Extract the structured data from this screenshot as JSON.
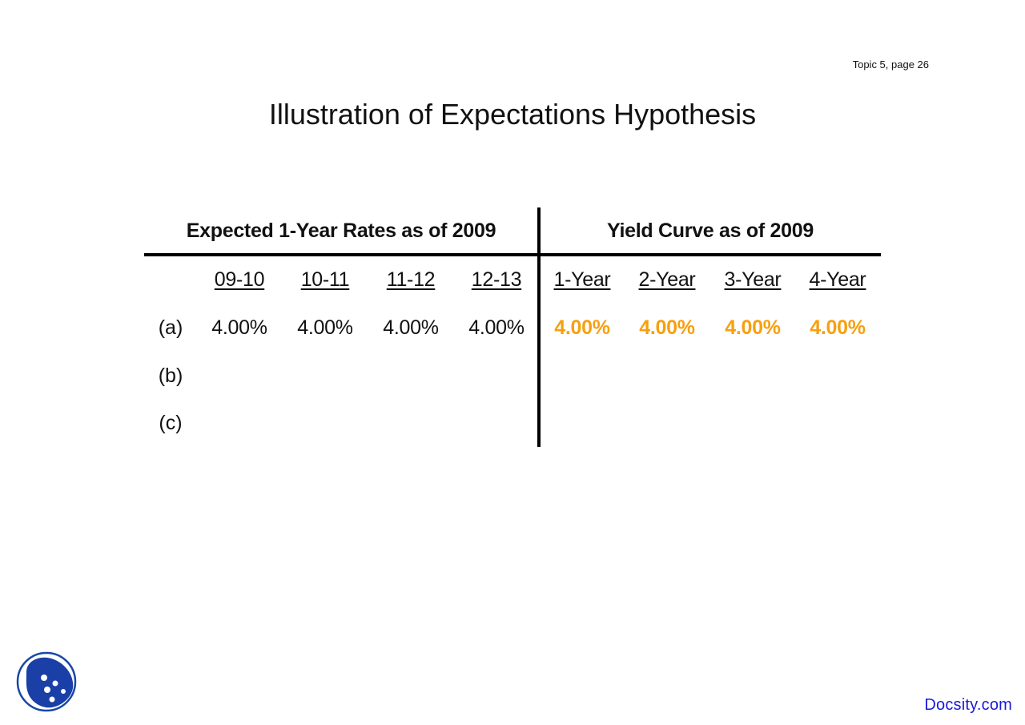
{
  "header": {
    "page_number": "Topic 5, page 26",
    "title": "Illustration of Expectations Hypothesis"
  },
  "table": {
    "group_left": "Expected 1-Year Rates as of 2009",
    "group_right": "Yield Curve as of 2009",
    "columns": [
      "09-10",
      "10-11",
      "11-12",
      "12-13",
      "1-Year",
      "2-Year",
      "3-Year",
      "4-Year"
    ],
    "rows": [
      {
        "label": "(a)",
        "values": [
          "4.00%",
          "4.00%",
          "4.00%",
          "4.00%",
          "4.00%",
          "4.00%",
          "4.00%",
          "4.00%"
        ]
      },
      {
        "label": "(b)",
        "values": [
          "",
          "",
          "",
          "",
          "",
          "",
          "",
          ""
        ]
      },
      {
        "label": "(c)",
        "values": [
          "",
          "",
          "",
          "",
          "",
          "",
          "",
          ""
        ]
      }
    ],
    "highlight_color": "#f7a00f"
  },
  "footer": {
    "brand": "Docsity.com",
    "brand_color": "#1a1adb",
    "logo_icon": "docsity-ladybug-logo-icon"
  }
}
